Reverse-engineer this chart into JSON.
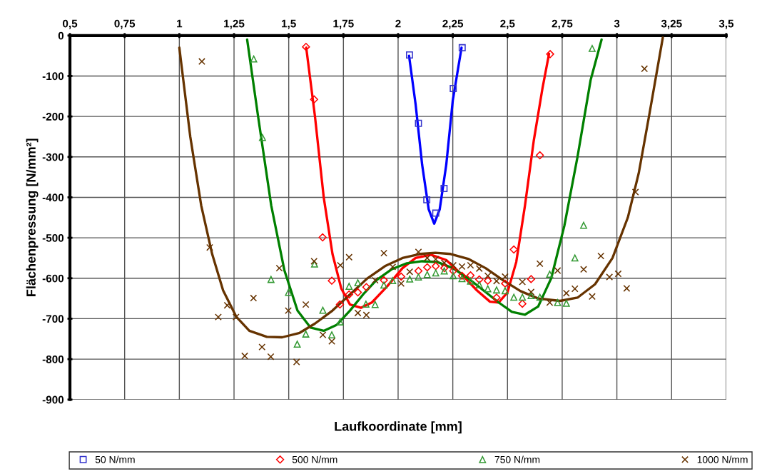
{
  "chart_data": {
    "type": "scatter",
    "xlabel": "Laufkoordinate [mm]",
    "ylabel": "Flächenpressung [N/mm²]",
    "xlim": [
      0.5,
      3.5
    ],
    "xticks": [
      {
        "value": 0.5,
        "label": "0,5"
      },
      {
        "value": 0.75,
        "label": "0,75"
      },
      {
        "value": 1,
        "label": "1"
      },
      {
        "value": 1.25,
        "label": "1,25"
      },
      {
        "value": 1.5,
        "label": "1,5"
      },
      {
        "value": 1.75,
        "label": "1,75"
      },
      {
        "value": 2,
        "label": "2"
      },
      {
        "value": 2.25,
        "label": "2,25"
      },
      {
        "value": 2.5,
        "label": "2,5"
      },
      {
        "value": 2.75,
        "label": "2,75"
      },
      {
        "value": 3,
        "label": "3"
      },
      {
        "value": 3.25,
        "label": "3,25"
      },
      {
        "value": 3.5,
        "label": "3,5"
      }
    ],
    "ylim": [
      -900,
      0
    ],
    "yticks": [
      -900,
      -800,
      -700,
      -600,
      -500,
      -400,
      -300,
      -200,
      -100,
      0
    ],
    "grid": true,
    "legend": "bottom",
    "series": [
      {
        "name": "50 N/mm",
        "marker": "square",
        "color": "#3333cc",
        "x": [
          2.052,
          2.093,
          2.131,
          2.172,
          2.21,
          2.252,
          2.293
        ],
        "values": [
          -48,
          -217,
          -406,
          -439,
          -378,
          -131,
          -30
        ]
      },
      {
        "name": "500 N/mm",
        "marker": "diamond",
        "color": "#ff0000",
        "x": [
          1.579,
          1.616,
          1.655,
          1.697,
          1.734,
          1.776,
          1.816,
          1.855,
          1.935,
          2.014,
          2.093,
          2.133,
          2.172,
          2.211,
          2.252,
          2.292,
          2.331,
          2.371,
          2.41,
          2.45,
          2.489,
          2.529,
          2.568,
          2.608,
          2.648,
          2.695
        ],
        "values": [
          -28,
          -158,
          -499,
          -606,
          -665,
          -640,
          -635,
          -622,
          -605,
          -596,
          -582,
          -573,
          -570,
          -575,
          -582,
          -594,
          -593,
          -603,
          -606,
          -648,
          -613,
          -529,
          -663,
          -602,
          -296,
          -46
        ]
      },
      {
        "name": "750 N/mm",
        "marker": "triangle",
        "color": "#339933",
        "x": [
          1.34,
          1.38,
          1.419,
          1.499,
          1.539,
          1.578,
          1.618,
          1.656,
          1.697,
          1.735,
          1.776,
          1.816,
          1.853,
          1.895,
          1.935,
          1.975,
          2.053,
          2.093,
          2.133,
          2.172,
          2.211,
          2.252,
          2.292,
          2.331,
          2.371,
          2.41,
          2.45,
          2.489,
          2.529,
          2.568,
          2.608,
          2.648,
          2.693,
          2.729,
          2.769,
          2.808,
          2.848,
          2.887
        ],
        "values": [
          -58,
          -252,
          -603,
          -635,
          -763,
          -738,
          -565,
          -679,
          -740,
          -708,
          -620,
          -611,
          -664,
          -665,
          -617,
          -606,
          -602,
          -597,
          -591,
          -587,
          -582,
          -594,
          -601,
          -607,
          -616,
          -626,
          -629,
          -631,
          -647,
          -647,
          -643,
          -647,
          -590,
          -660,
          -662,
          -550,
          -469,
          -32
        ]
      },
      {
        "name": "1000 N/mm",
        "marker": "cross",
        "color": "#663300",
        "x": [
          1.103,
          1.139,
          1.178,
          1.219,
          1.259,
          1.299,
          1.339,
          1.378,
          1.418,
          1.457,
          1.498,
          1.536,
          1.578,
          1.616,
          1.656,
          1.697,
          1.736,
          1.776,
          1.816,
          1.855,
          1.895,
          1.935,
          1.975,
          2.014,
          2.053,
          2.093,
          2.133,
          2.172,
          2.211,
          2.252,
          2.292,
          2.331,
          2.371,
          2.41,
          2.45,
          2.489,
          2.568,
          2.608,
          2.648,
          2.693,
          2.729,
          2.769,
          2.808,
          2.848,
          2.887,
          2.927,
          2.966,
          3.006,
          3.045,
          3.085,
          3.126
        ],
        "values": [
          -64,
          -524,
          -696,
          -667,
          -696,
          -792,
          -649,
          -770,
          -794,
          -575,
          -680,
          -807,
          -665,
          -558,
          -740,
          -756,
          -568,
          -548,
          -686,
          -691,
          -605,
          -538,
          -572,
          -613,
          -584,
          -535,
          -550,
          -553,
          -562,
          -568,
          -571,
          -568,
          -576,
          -594,
          -607,
          -596,
          -609,
          -634,
          -564,
          -660,
          -581,
          -637,
          -626,
          -578,
          -645,
          -545,
          -597,
          -589,
          -625,
          -387,
          -82
        ]
      },
      {
        "type": "line",
        "marker": "none",
        "line_style": "solid",
        "color": "#0000ff",
        "x": [
          2.05,
          2.08,
          2.11,
          2.14,
          2.165,
          2.19,
          2.22,
          2.25,
          2.29
        ],
        "values": [
          -50,
          -170,
          -320,
          -430,
          -465,
          -430,
          -320,
          -160,
          -30
        ]
      },
      {
        "type": "line",
        "marker": "none",
        "line_style": "solid",
        "color": "#ff0000",
        "x": [
          1.58,
          1.62,
          1.66,
          1.7,
          1.74,
          1.78,
          1.83,
          1.88,
          1.95,
          2.02,
          2.08,
          2.15,
          2.22,
          2.29,
          2.36,
          2.42,
          2.46,
          2.5,
          2.54,
          2.58,
          2.62,
          2.66,
          2.69
        ],
        "values": [
          -30,
          -200,
          -400,
          -540,
          -625,
          -665,
          -673,
          -660,
          -620,
          -575,
          -550,
          -542,
          -555,
          -590,
          -630,
          -658,
          -660,
          -635,
          -560,
          -420,
          -260,
          -130,
          -45
        ]
      },
      {
        "type": "line",
        "marker": "none",
        "line_style": "solid",
        "color": "#008000",
        "x": [
          1.31,
          1.36,
          1.42,
          1.48,
          1.54,
          1.6,
          1.66,
          1.72,
          1.78,
          1.84,
          1.9,
          1.97,
          2.04,
          2.11,
          2.18,
          2.25,
          2.32,
          2.39,
          2.46,
          2.52,
          2.58,
          2.64,
          2.7,
          2.76,
          2.82,
          2.88,
          2.93
        ],
        "values": [
          -10,
          -200,
          -420,
          -580,
          -680,
          -722,
          -730,
          -715,
          -680,
          -640,
          -605,
          -578,
          -563,
          -558,
          -560,
          -575,
          -600,
          -630,
          -660,
          -683,
          -690,
          -670,
          -600,
          -470,
          -300,
          -110,
          -10
        ]
      },
      {
        "type": "line",
        "marker": "none",
        "line_style": "solid",
        "color": "#663300",
        "x": [
          1.0,
          1.05,
          1.1,
          1.15,
          1.2,
          1.26,
          1.32,
          1.4,
          1.47,
          1.55,
          1.62,
          1.7,
          1.78,
          1.86,
          1.94,
          2.02,
          2.1,
          2.17,
          2.24,
          2.32,
          2.4,
          2.48,
          2.56,
          2.64,
          2.74,
          2.82,
          2.9,
          2.98,
          3.05,
          3.1,
          3.15,
          3.21
        ],
        "values": [
          -30,
          -250,
          -420,
          -540,
          -630,
          -695,
          -730,
          -745,
          -746,
          -735,
          -712,
          -680,
          -640,
          -600,
          -570,
          -550,
          -540,
          -537,
          -540,
          -552,
          -575,
          -605,
          -632,
          -650,
          -656,
          -648,
          -615,
          -550,
          -450,
          -340,
          -190,
          -5
        ]
      }
    ]
  }
}
